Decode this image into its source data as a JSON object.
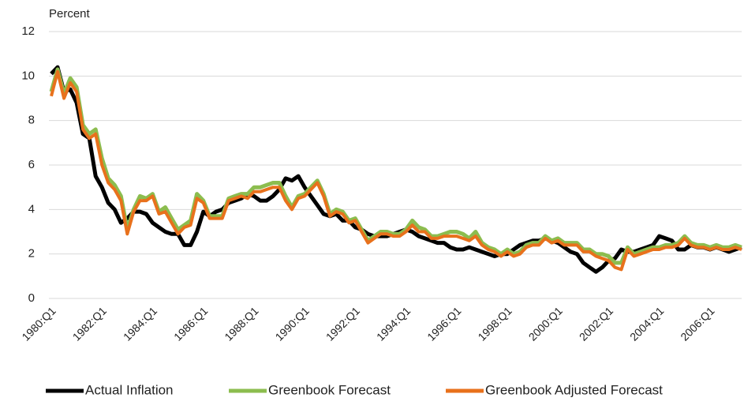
{
  "chart_data": {
    "type": "line",
    "y_label": "Percent",
    "categories": [
      "1980:Q1",
      null,
      null,
      null,
      null,
      null,
      null,
      null,
      "1982:Q1",
      null,
      null,
      null,
      null,
      null,
      null,
      null,
      "1984:Q1",
      null,
      null,
      null,
      null,
      null,
      null,
      null,
      "1986:Q1",
      null,
      null,
      null,
      null,
      null,
      null,
      null,
      "1988:Q1",
      null,
      null,
      null,
      null,
      null,
      null,
      null,
      "1990:Q1",
      null,
      null,
      null,
      null,
      null,
      null,
      null,
      "1992:Q1",
      null,
      null,
      null,
      null,
      null,
      null,
      null,
      "1994:Q1",
      null,
      null,
      null,
      null,
      null,
      null,
      null,
      "1996:Q1",
      null,
      null,
      null,
      null,
      null,
      null,
      null,
      "1998:Q1",
      null,
      null,
      null,
      null,
      null,
      null,
      null,
      "2000:Q1",
      null,
      null,
      null,
      null,
      null,
      null,
      null,
      "2002:Q1",
      null,
      null,
      null,
      null,
      null,
      null,
      null,
      "2004:Q1",
      null,
      null,
      null,
      null,
      null,
      null,
      null,
      "2006:Q1",
      null,
      null,
      null,
      null,
      null
    ],
    "series": [
      {
        "name": "Actual Inflation",
        "color": "#000000",
        "values": [
          10.1,
          10.4,
          9.3,
          9.4,
          8.8,
          7.4,
          7.2,
          5.5,
          5.0,
          4.3,
          4.0,
          3.4,
          3.6,
          3.9,
          3.9,
          3.8,
          3.4,
          3.2,
          3.0,
          2.9,
          2.9,
          2.4,
          2.4,
          3.0,
          3.9,
          3.7,
          3.9,
          4.0,
          4.3,
          4.4,
          4.5,
          4.7,
          4.6,
          4.4,
          4.4,
          4.6,
          4.9,
          5.4,
          5.3,
          5.5,
          5.0,
          4.6,
          4.2,
          3.8,
          3.7,
          3.8,
          3.5,
          3.5,
          3.2,
          3.1,
          2.9,
          2.8,
          2.8,
          2.8,
          2.9,
          3.0,
          3.1,
          3.0,
          2.8,
          2.7,
          2.6,
          2.5,
          2.5,
          2.3,
          2.2,
          2.2,
          2.3,
          2.2,
          2.1,
          2.0,
          1.9,
          2.0,
          2.0,
          2.2,
          2.4,
          2.5,
          2.6,
          2.6,
          2.7,
          2.6,
          2.5,
          2.3,
          2.1,
          2.0,
          1.6,
          1.4,
          1.2,
          1.4,
          1.7,
          1.8,
          2.2,
          2.1,
          2.1,
          2.2,
          2.3,
          2.4,
          2.8,
          2.7,
          2.6,
          2.2,
          2.2,
          2.4,
          2.3,
          2.3,
          2.2,
          2.3,
          2.2,
          2.1,
          2.2,
          2.3
        ]
      },
      {
        "name": "Greenbook Forecast",
        "color": "#8cbd4f",
        "values": [
          9.3,
          10.3,
          9.2,
          9.9,
          9.5,
          7.8,
          7.4,
          7.6,
          6.3,
          5.4,
          5.1,
          4.6,
          3.1,
          4.0,
          4.6,
          4.5,
          4.7,
          3.9,
          4.1,
          3.6,
          3.1,
          3.3,
          3.5,
          4.7,
          4.4,
          3.7,
          3.7,
          3.7,
          4.5,
          4.6,
          4.7,
          4.7,
          5.0,
          5.0,
          5.1,
          5.2,
          5.2,
          4.6,
          4.1,
          4.6,
          4.7,
          5.0,
          5.3,
          4.7,
          3.8,
          4.0,
          3.9,
          3.5,
          3.6,
          3.1,
          2.6,
          2.8,
          3.0,
          3.0,
          2.9,
          2.9,
          3.1,
          3.5,
          3.2,
          3.1,
          2.8,
          2.8,
          2.9,
          3.0,
          3.0,
          2.9,
          2.7,
          3.0,
          2.5,
          2.3,
          2.2,
          2.0,
          2.2,
          2.0,
          2.1,
          2.4,
          2.5,
          2.5,
          2.8,
          2.6,
          2.7,
          2.5,
          2.5,
          2.5,
          2.2,
          2.2,
          2.0,
          2.0,
          1.9,
          1.6,
          1.6,
          2.3,
          2.0,
          2.1,
          2.2,
          2.3,
          2.3,
          2.4,
          2.4,
          2.5,
          2.8,
          2.5,
          2.4,
          2.4,
          2.3,
          2.4,
          2.3,
          2.3,
          2.4,
          2.3
        ]
      },
      {
        "name": "Greenbook Adjusted Forecast",
        "color": "#e8711c",
        "values": [
          9.1,
          10.2,
          9.0,
          9.7,
          9.3,
          7.6,
          7.2,
          7.4,
          6.0,
          5.2,
          4.9,
          4.4,
          2.9,
          3.9,
          4.4,
          4.4,
          4.6,
          3.8,
          3.9,
          3.4,
          2.9,
          3.2,
          3.3,
          4.5,
          4.3,
          3.6,
          3.6,
          3.6,
          4.4,
          4.5,
          4.6,
          4.5,
          4.8,
          4.8,
          4.9,
          5.0,
          5.0,
          4.4,
          4.0,
          4.5,
          4.6,
          4.9,
          5.2,
          4.6,
          3.7,
          3.9,
          3.8,
          3.4,
          3.5,
          3.0,
          2.5,
          2.7,
          2.9,
          2.9,
          2.8,
          2.8,
          3.0,
          3.3,
          3.0,
          3.0,
          2.7,
          2.7,
          2.8,
          2.8,
          2.8,
          2.7,
          2.6,
          2.8,
          2.4,
          2.2,
          2.1,
          1.9,
          2.1,
          1.9,
          2.0,
          2.3,
          2.4,
          2.4,
          2.7,
          2.5,
          2.6,
          2.4,
          2.4,
          2.4,
          2.1,
          2.1,
          1.9,
          1.8,
          1.7,
          1.4,
          1.3,
          2.2,
          1.9,
          2.0,
          2.1,
          2.2,
          2.2,
          2.3,
          2.3,
          2.4,
          2.7,
          2.4,
          2.3,
          2.3,
          2.2,
          2.3,
          2.2,
          2.2,
          2.3,
          2.2
        ]
      }
    ],
    "ylim": [
      0,
      12
    ],
    "yticks": [
      0,
      2,
      4,
      6,
      8,
      10,
      12
    ],
    "grid": true,
    "legend": "bottom"
  }
}
